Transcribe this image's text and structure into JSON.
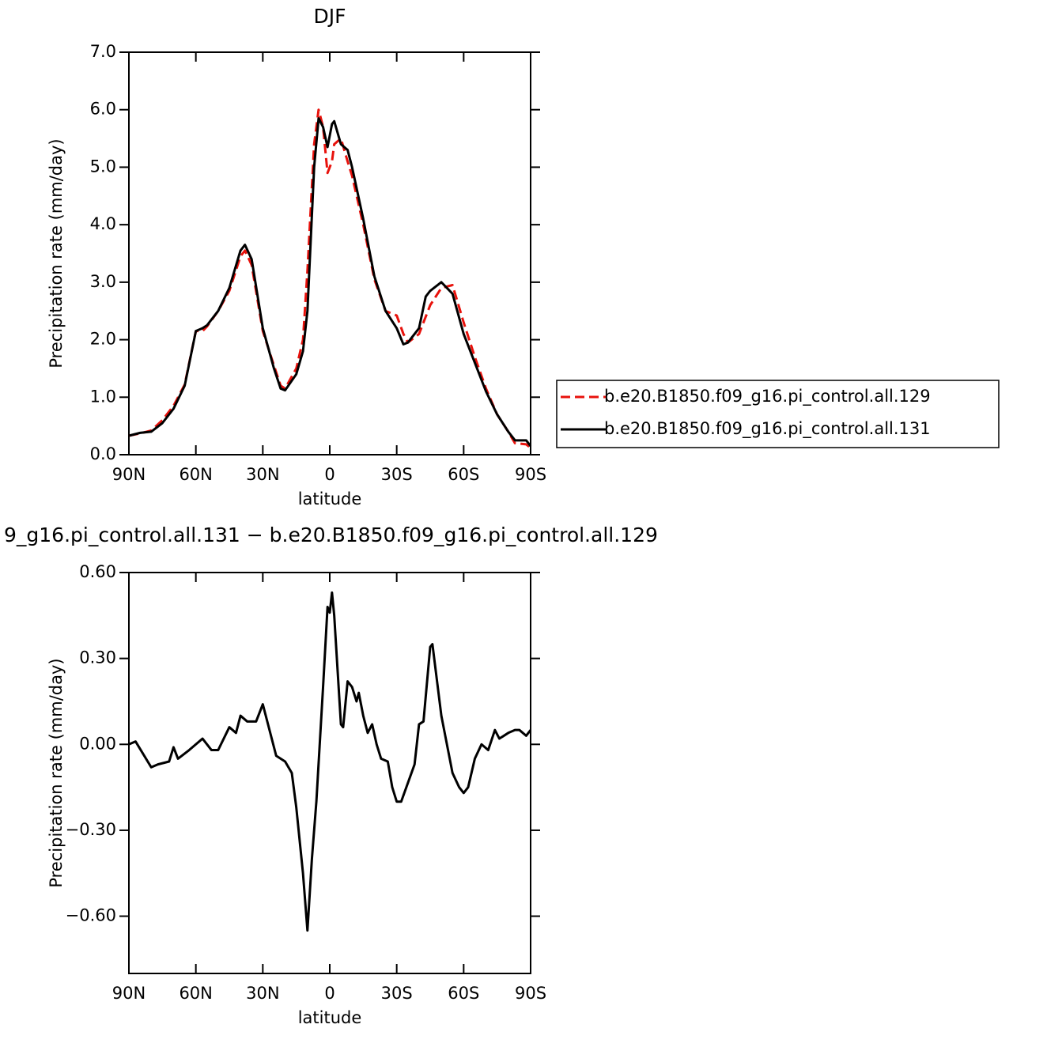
{
  "chart_data": [
    {
      "type": "line",
      "title": "DJF",
      "xlabel": "latitude",
      "ylabel": "Precipitation rate (mm/day)",
      "x": [
        90,
        85,
        80,
        75,
        70,
        65,
        60,
        57,
        55,
        50,
        45,
        40,
        38,
        35,
        30,
        25,
        22,
        20,
        15,
        12,
        10,
        7,
        5,
        3,
        1,
        -1,
        -2,
        -5,
        -8,
        -10,
        -15,
        -20,
        -25,
        -30,
        -33,
        -35,
        -40,
        -43,
        -45,
        -50,
        -55,
        -60,
        -65,
        -70,
        -75,
        -80,
        -83,
        -88,
        -90
      ],
      "series": [
        {
          "name": "b.e20.B1850.f09_g16.pi_control.all.129",
          "color": "#e8120c",
          "line_style": "dashed",
          "values": [
            0.33,
            0.37,
            0.42,
            0.6,
            0.85,
            1.22,
            2.15,
            2.15,
            2.23,
            2.5,
            2.85,
            3.45,
            3.55,
            3.3,
            2.15,
            1.55,
            1.2,
            1.15,
            1.5,
            2.0,
            3.2,
            5.4,
            6.0,
            5.7,
            4.9,
            5.1,
            5.4,
            5.5,
            5.1,
            4.85,
            4.0,
            3.05,
            2.5,
            2.42,
            2.1,
            1.95,
            2.1,
            2.4,
            2.6,
            2.9,
            2.95,
            2.3,
            1.7,
            1.15,
            0.7,
            0.4,
            0.2,
            0.18,
            0.12
          ]
        },
        {
          "name": "b.e20.B1850.f09_g16.pi_control.all.131",
          "color": "#000000",
          "line_style": "solid",
          "values": [
            0.33,
            0.38,
            0.4,
            0.55,
            0.8,
            1.2,
            2.15,
            2.2,
            2.25,
            2.5,
            2.9,
            3.55,
            3.65,
            3.4,
            2.2,
            1.5,
            1.15,
            1.12,
            1.4,
            1.8,
            2.5,
            5.0,
            5.85,
            5.7,
            5.35,
            5.75,
            5.8,
            5.4,
            5.3,
            5.0,
            4.1,
            3.1,
            2.5,
            2.2,
            1.92,
            1.95,
            2.2,
            2.75,
            2.85,
            3.0,
            2.8,
            2.1,
            1.6,
            1.1,
            0.7,
            0.4,
            0.25,
            0.25,
            0.15
          ]
        }
      ],
      "xlim": [
        90,
        -90
      ],
      "xticks": [
        {
          "value": 90,
          "label": "90N"
        },
        {
          "value": 60,
          "label": "60N"
        },
        {
          "value": 30,
          "label": "30N"
        },
        0,
        {
          "value": -30,
          "label": "30S"
        },
        {
          "value": -60,
          "label": "60S"
        },
        {
          "value": -90,
          "label": "90S"
        }
      ],
      "ylim": [
        0,
        7
      ],
      "yticks": [
        {
          "value": 0,
          "label": "0.0"
        },
        {
          "value": 1,
          "label": "1.0"
        },
        {
          "value": 2,
          "label": "2.0"
        },
        {
          "value": 3,
          "label": "3.0"
        },
        {
          "value": 4,
          "label": "4.0"
        },
        {
          "value": 5,
          "label": "5.0"
        },
        {
          "value": 6,
          "label": "6.0"
        },
        {
          "value": 7,
          "label": "7.0"
        }
      ],
      "legend": "right"
    },
    {
      "type": "line",
      "title": "9_g16.pi_control.all.131 − b.e20.B1850.f09_g16.pi_control.all.129",
      "xlabel": "latitude",
      "ylabel": "Precipitation rate (mm/day)",
      "x": [
        90,
        87,
        80,
        77,
        72,
        70,
        68,
        63,
        60,
        57,
        53,
        50,
        45,
        42,
        40,
        37,
        33,
        30,
        27,
        24,
        20,
        17,
        15,
        12,
        10,
        8,
        6,
        3,
        1,
        0,
        -1,
        -2,
        -5,
        -6,
        -8,
        -10,
        -12,
        -13,
        -15,
        -17,
        -19,
        -21,
        -23,
        -26,
        -28,
        -30,
        -32,
        -38,
        -40,
        -42,
        -45,
        -46,
        -50,
        -55,
        -58,
        -60,
        -62,
        -65,
        -68,
        -71,
        -74,
        -76,
        -80,
        -83,
        -85,
        -88,
        -90
      ],
      "values": [
        0.0,
        0.01,
        -0.08,
        -0.07,
        -0.06,
        -0.01,
        -0.05,
        -0.02,
        0.0,
        0.02,
        -0.02,
        -0.02,
        0.06,
        0.04,
        0.1,
        0.08,
        0.08,
        0.14,
        0.05,
        -0.04,
        -0.06,
        -0.1,
        -0.22,
        -0.45,
        -0.65,
        -0.4,
        -0.2,
        0.2,
        0.48,
        0.46,
        0.53,
        0.45,
        0.07,
        0.06,
        0.22,
        0.2,
        0.15,
        0.18,
        0.1,
        0.04,
        0.07,
        0.0,
        -0.05,
        -0.06,
        -0.15,
        -0.2,
        -0.2,
        -0.07,
        0.07,
        0.08,
        0.34,
        0.35,
        0.1,
        -0.1,
        -0.15,
        -0.17,
        -0.15,
        -0.05,
        0.0,
        -0.02,
        0.05,
        0.02,
        0.04,
        0.05,
        0.05,
        0.03,
        0.05
      ],
      "color": "#000000",
      "line_style": "solid",
      "xlim": [
        90,
        -90
      ],
      "xticks": [
        {
          "value": 90,
          "label": "90N"
        },
        {
          "value": 60,
          "label": "60N"
        },
        {
          "value": 30,
          "label": "30N"
        },
        0,
        {
          "value": -30,
          "label": "30S"
        },
        {
          "value": -60,
          "label": "60S"
        },
        {
          "value": -90,
          "label": "90S"
        }
      ],
      "ylim": [
        -0.8,
        0.6
      ],
      "yticks": [
        {
          "value": -0.6,
          "label": "−0.60"
        },
        {
          "value": -0.3,
          "label": "−0.30"
        },
        {
          "value": 0,
          "label": "0.00"
        },
        {
          "value": 0.3,
          "label": "0.30"
        },
        {
          "value": 0.6,
          "label": "0.60"
        }
      ]
    }
  ]
}
